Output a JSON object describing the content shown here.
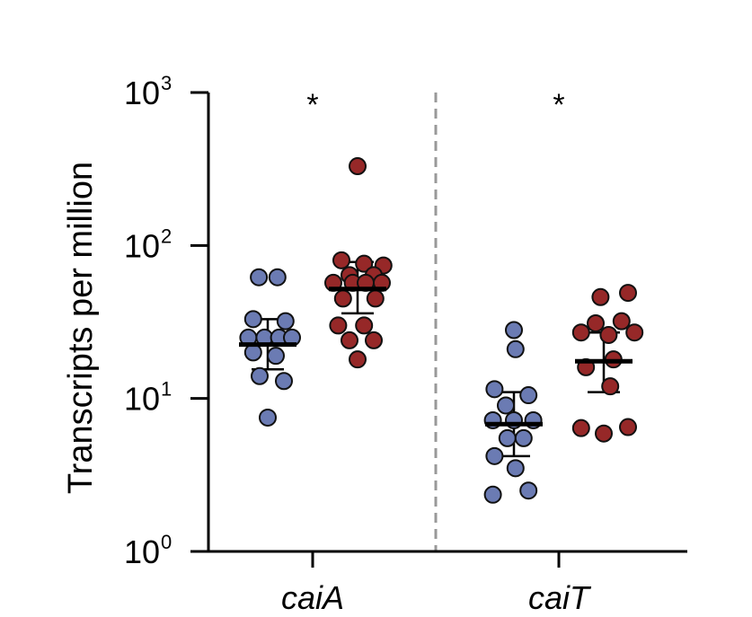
{
  "chart_data": {
    "type": "scatter",
    "scale": "log10",
    "ylabel": "Transcripts per million",
    "ylim": [
      1,
      1000
    ],
    "yticks": [
      {
        "value": 1,
        "base": "10",
        "exp": "0"
      },
      {
        "value": 10,
        "base": "10",
        "exp": "1"
      },
      {
        "value": 100,
        "base": "10",
        "exp": "2"
      },
      {
        "value": 1000,
        "base": "10",
        "exp": "3"
      }
    ],
    "groups": [
      {
        "label": "caiA",
        "significance": "*",
        "series": [
          {
            "color": "#6b7bb3",
            "points": [
              {
                "y": 62,
                "dx": -0.55
              },
              {
                "y": 62,
                "dx": 0.6
              },
              {
                "y": 33,
                "dx": -0.9
              },
              {
                "y": 32,
                "dx": 1.1
              },
              {
                "y": 25,
                "dx": -1.2
              },
              {
                "y": 25,
                "dx": -0.2
              },
              {
                "y": 25,
                "dx": 0.7
              },
              {
                "y": 25,
                "dx": 1.5
              },
              {
                "y": 20,
                "dx": -0.9
              },
              {
                "y": 19,
                "dx": 0.5
              },
              {
                "y": 14,
                "dx": -0.5
              },
              {
                "y": 13,
                "dx": 1.0
              },
              {
                "y": 7.5,
                "dx": 0.0
              }
            ],
            "mean": 22.5,
            "err_low": 15.5,
            "err_high": 33
          },
          {
            "color": "#962828",
            "points": [
              {
                "y": 330,
                "dx": 0.0
              },
              {
                "y": 80,
                "dx": -1.0
              },
              {
                "y": 76,
                "dx": 0.4
              },
              {
                "y": 74,
                "dx": 1.6
              },
              {
                "y": 64,
                "dx": -0.5
              },
              {
                "y": 64,
                "dx": 1.0
              },
              {
                "y": 57,
                "dx": -1.5
              },
              {
                "y": 57,
                "dx": -0.3
              },
              {
                "y": 57,
                "dx": 0.5
              },
              {
                "y": 57,
                "dx": 1.5
              },
              {
                "y": 45,
                "dx": -0.9
              },
              {
                "y": 45,
                "dx": 1.1
              },
              {
                "y": 30,
                "dx": -1.2
              },
              {
                "y": 30,
                "dx": 0.4
              },
              {
                "y": 24,
                "dx": -0.5
              },
              {
                "y": 24,
                "dx": 1.0
              },
              {
                "y": 18,
                "dx": 0.0
              }
            ],
            "mean": 52,
            "err_low": 36,
            "err_high": 78
          }
        ]
      },
      {
        "label": "caiT",
        "significance": "*",
        "series": [
          {
            "color": "#6b7bb3",
            "points": [
              {
                "y": 28,
                "dx": 0.0
              },
              {
                "y": 21,
                "dx": 0.1
              },
              {
                "y": 11.5,
                "dx": -1.2
              },
              {
                "y": 10.5,
                "dx": 0.9
              },
              {
                "y": 9.0,
                "dx": -0.5
              },
              {
                "y": 7.2,
                "dx": -1.3
              },
              {
                "y": 7.2,
                "dx": 0.0
              },
              {
                "y": 7.2,
                "dx": 1.2
              },
              {
                "y": 5.5,
                "dx": -0.4
              },
              {
                "y": 5.5,
                "dx": 0.6
              },
              {
                "y": 4.2,
                "dx": -1.2
              },
              {
                "y": 3.5,
                "dx": 0.1
              },
              {
                "y": 2.5,
                "dx": 0.9
              },
              {
                "y": 2.35,
                "dx": -1.3
              }
            ],
            "mean": 6.8,
            "err_low": 4.2,
            "err_high": 11
          },
          {
            "color": "#962828",
            "points": [
              {
                "y": 49,
                "dx": 1.5
              },
              {
                "y": 46,
                "dx": -0.2
              },
              {
                "y": 32,
                "dx": 1.1
              },
              {
                "y": 31,
                "dx": -0.5
              },
              {
                "y": 27,
                "dx": -1.4
              },
              {
                "y": 27,
                "dx": 1.9
              },
              {
                "y": 26,
                "dx": 0.3
              },
              {
                "y": 18,
                "dx": 0.6
              },
              {
                "y": 16,
                "dx": -1.1
              },
              {
                "y": 12,
                "dx": 0.4
              },
              {
                "y": 6.5,
                "dx": 1.5
              },
              {
                "y": 6.4,
                "dx": -1.4
              },
              {
                "y": 5.9,
                "dx": 0.0
              }
            ],
            "mean": 17.5,
            "err_low": 11,
            "err_high": 27
          }
        ]
      }
    ]
  }
}
